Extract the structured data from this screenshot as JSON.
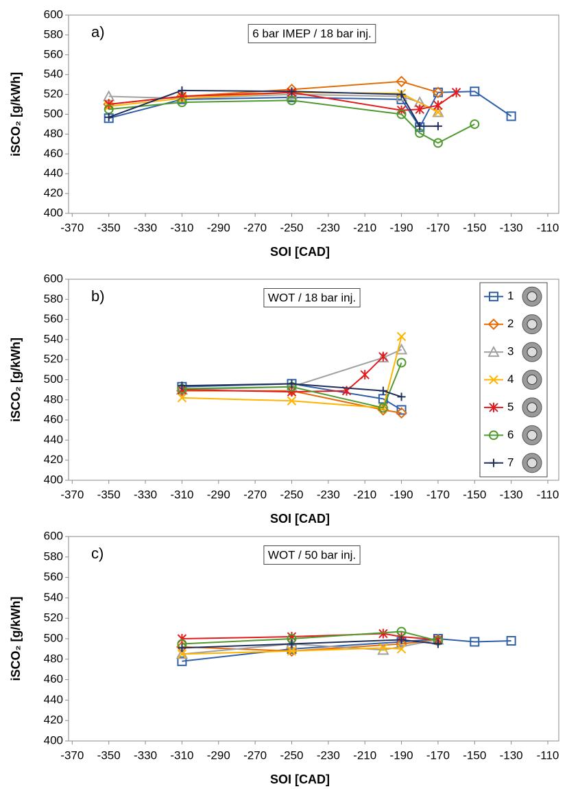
{
  "chart_data": [
    {
      "type": "line",
      "label": "a)",
      "title": "6 bar IMEP / 18 bar inj.",
      "y_label": "iSCO₂ [g/kWh]",
      "x_label": "SOI [CAD]",
      "xlim": [
        -372,
        -104
      ],
      "xticks": [
        -370,
        -350,
        -330,
        -310,
        -290,
        -270,
        -250,
        -230,
        -210,
        -190,
        -170,
        -150,
        -130,
        -110
      ],
      "ylim": [
        400,
        600
      ],
      "yticks": [
        400,
        420,
        440,
        460,
        480,
        500,
        520,
        540,
        560,
        580,
        600
      ],
      "series": [
        {
          "color": "#2e5fa8",
          "marker": "square",
          "x": [
            -350,
            -310,
            -250,
            -190,
            -180,
            -170,
            -150,
            -130
          ],
          "values": [
            496,
            515,
            517,
            515,
            487,
            522,
            523,
            498
          ]
        },
        {
          "color": "#e36c0a",
          "marker": "diamond",
          "x": [
            -350,
            -310,
            -250,
            -190,
            -170
          ],
          "values": [
            510,
            518,
            525,
            533,
            522
          ]
        },
        {
          "color": "#a0a0a0",
          "marker": "triangle",
          "x": [
            -350,
            -310,
            -250,
            -190,
            -180,
            -170
          ],
          "values": [
            518,
            516,
            520,
            518,
            512,
            502
          ]
        },
        {
          "color": "#ffb400",
          "marker": "x",
          "x": [
            -350,
            -310,
            -250,
            -190,
            -170
          ],
          "values": [
            508,
            516,
            522,
            521,
            502
          ]
        },
        {
          "color": "#e31a1c",
          "marker": "star",
          "x": [
            -350,
            -310,
            -250,
            -190,
            -180,
            -170,
            -160
          ],
          "values": [
            510,
            518,
            522,
            504,
            505,
            509,
            522
          ]
        },
        {
          "color": "#4f9a2f",
          "marker": "circle",
          "x": [
            -350,
            -310,
            -250,
            -190,
            -180,
            -170,
            -150
          ],
          "values": [
            505,
            512,
            514,
            500,
            481,
            471,
            490
          ]
        },
        {
          "color": "#1f2d5a",
          "marker": "plus",
          "x": [
            -350,
            -310,
            -250,
            -190,
            -180,
            -170
          ],
          "values": [
            497,
            524,
            523,
            520,
            488,
            488
          ]
        }
      ]
    },
    {
      "type": "line",
      "label": "b)",
      "title": "WOT / 18 bar inj.",
      "y_label": "iSCO₂ [g/kWh]",
      "x_label": "SOI [CAD]",
      "xlim": [
        -372,
        -104
      ],
      "xticks": [
        -370,
        -350,
        -330,
        -310,
        -290,
        -270,
        -250,
        -230,
        -210,
        -190,
        -170,
        -150,
        -130,
        -110
      ],
      "ylim": [
        400,
        600
      ],
      "yticks": [
        400,
        420,
        440,
        460,
        480,
        500,
        520,
        540,
        560,
        580,
        600
      ],
      "legend": "upper right",
      "series": [
        {
          "name": "1",
          "color": "#2e5fa8",
          "marker": "square",
          "x": [
            -310,
            -250,
            -200,
            -190
          ],
          "values": [
            493,
            496,
            481,
            470
          ]
        },
        {
          "name": "2",
          "color": "#e36c0a",
          "marker": "diamond",
          "x": [
            -310,
            -250,
            -200,
            -190
          ],
          "values": [
            489,
            489,
            470,
            467
          ]
        },
        {
          "name": "3",
          "color": "#a0a0a0",
          "marker": "triangle",
          "x": [
            -310,
            -250,
            -200,
            -190
          ],
          "values": [
            490,
            493,
            522,
            530
          ]
        },
        {
          "name": "4",
          "color": "#ffb400",
          "marker": "x",
          "x": [
            -310,
            -250,
            -200,
            -190
          ],
          "values": [
            482,
            479,
            472,
            543
          ]
        },
        {
          "name": "5",
          "color": "#e31a1c",
          "marker": "star",
          "x": [
            -310,
            -250,
            -220,
            -210,
            -200
          ],
          "values": [
            490,
            488,
            489,
            505,
            523
          ]
        },
        {
          "name": "6",
          "color": "#4f9a2f",
          "marker": "circle",
          "x": [
            -310,
            -250,
            -200,
            -190
          ],
          "values": [
            491,
            493,
            472,
            517
          ]
        },
        {
          "name": "7",
          "color": "#1f2d5a",
          "marker": "plus",
          "x": [
            -310,
            -250,
            -200,
            -190
          ],
          "values": [
            494,
            496,
            489,
            483
          ]
        }
      ]
    },
    {
      "type": "line",
      "label": "c)",
      "title": "WOT / 50 bar inj.",
      "y_label": "iSCO₂ [g/kWh]",
      "x_label": "SOI [CAD]",
      "xlim": [
        -372,
        -104
      ],
      "xticks": [
        -370,
        -350,
        -330,
        -310,
        -290,
        -270,
        -250,
        -230,
        -210,
        -190,
        -170,
        -150,
        -130,
        -110
      ],
      "ylim": [
        400,
        600
      ],
      "yticks": [
        400,
        420,
        440,
        460,
        480,
        500,
        520,
        540,
        560,
        580,
        600
      ],
      "series": [
        {
          "color": "#2e5fa8",
          "marker": "square",
          "x": [
            -310,
            -250,
            -190,
            -170,
            -150,
            -130
          ],
          "values": [
            478,
            490,
            497,
            500,
            497,
            498
          ]
        },
        {
          "color": "#e36c0a",
          "marker": "diamond",
          "x": [
            -310,
            -250,
            -190,
            -170
          ],
          "values": [
            492,
            488,
            495,
            499
          ]
        },
        {
          "color": "#a0a0a0",
          "marker": "triangle",
          "x": [
            -310,
            -250,
            -200,
            -170
          ],
          "values": [
            485,
            495,
            489,
            499
          ]
        },
        {
          "color": "#ffb400",
          "marker": "x",
          "x": [
            -310,
            -250,
            -200,
            -190
          ],
          "values": [
            485,
            488,
            491,
            490
          ]
        },
        {
          "color": "#e31a1c",
          "marker": "star",
          "x": [
            -310,
            -250,
            -200,
            -190,
            -170
          ],
          "values": [
            500,
            502,
            505,
            502,
            499
          ]
        },
        {
          "color": "#4f9a2f",
          "marker": "circle",
          "x": [
            -310,
            -250,
            -190,
            -170
          ],
          "values": [
            495,
            500,
            507,
            498
          ]
        },
        {
          "color": "#1f2d5a",
          "marker": "plus",
          "x": [
            -310,
            -250,
            -190,
            -170
          ],
          "values": [
            491,
            495,
            499,
            495
          ]
        }
      ]
    }
  ]
}
